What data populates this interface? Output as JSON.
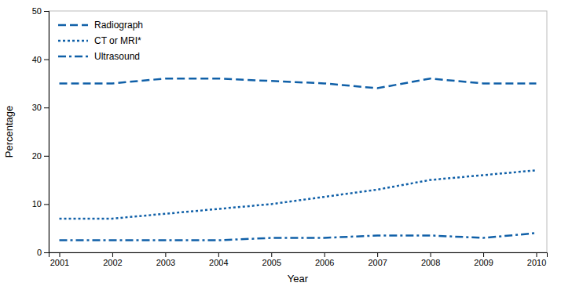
{
  "chart_data": {
    "type": "line",
    "x": [
      2001,
      2002,
      2003,
      2004,
      2005,
      2006,
      2007,
      2008,
      2009,
      2010
    ],
    "series": [
      {
        "name": "Radiograph",
        "color": "#1060a8",
        "line_style": "dashed",
        "values": [
          35,
          35,
          36,
          36,
          35.5,
          35,
          34,
          36,
          35,
          35
        ]
      },
      {
        "name": "CT or MRI*",
        "color": "#1060a8",
        "line_style": "dotted",
        "values": [
          7,
          7,
          8,
          9,
          10,
          11.5,
          13,
          15,
          16,
          17
        ]
      },
      {
        "name": "Ultrasound",
        "color": "#1060a8",
        "line_style": "dashdot",
        "values": [
          2.5,
          2.5,
          2.5,
          2.5,
          3,
          3,
          3.5,
          3.5,
          3,
          4
        ]
      }
    ],
    "xlabel": "Year",
    "ylabel": "Percentage",
    "xlim": [
      2000.8,
      2010.2
    ],
    "xticks": [
      2001,
      2002,
      2003,
      2004,
      2005,
      2006,
      2007,
      2008,
      2009,
      2010
    ],
    "ylim": [
      0,
      50
    ],
    "yticks": [
      0,
      10,
      20,
      30,
      40,
      50
    ],
    "grid": false,
    "legend": "upper left"
  }
}
